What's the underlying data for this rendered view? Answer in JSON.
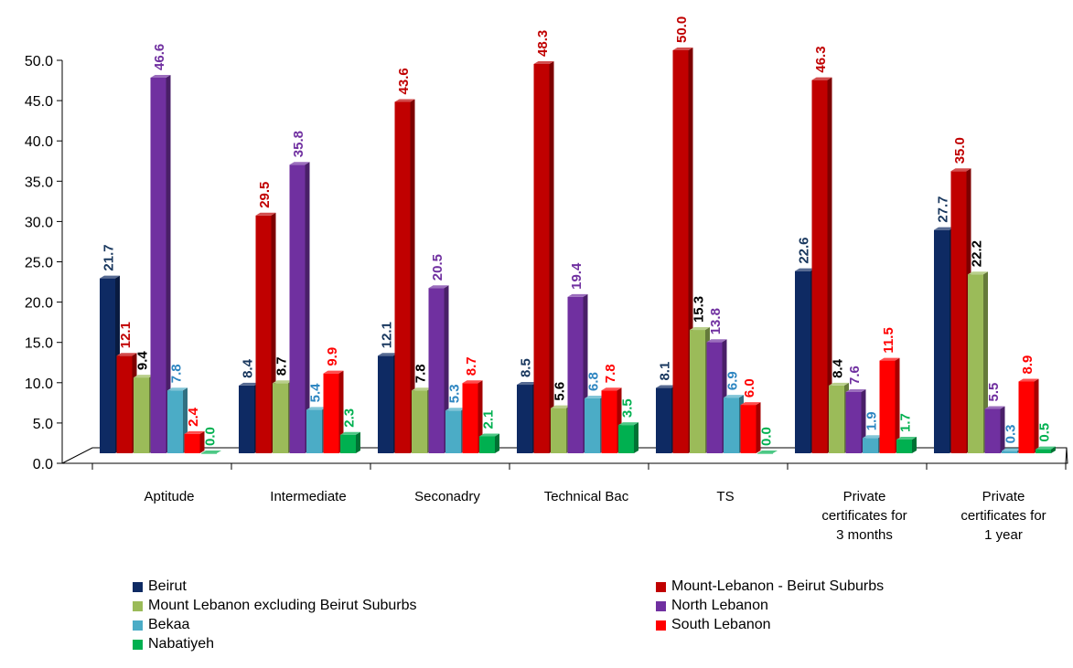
{
  "chart_data": {
    "type": "bar",
    "categories": [
      [
        "Aptitude"
      ],
      [
        "Intermediate"
      ],
      [
        "Seconadry"
      ],
      [
        "Technical Bac"
      ],
      [
        "TS"
      ],
      [
        "Private",
        "certificates for",
        "3 months"
      ],
      [
        "Private",
        "certificates for",
        "1 year"
      ]
    ],
    "ylim": [
      0,
      50
    ],
    "yticks": [
      "0.0",
      "5.0",
      "10.0",
      "15.0",
      "20.0",
      "25.0",
      "30.0",
      "35.0",
      "40.0",
      "45.0",
      "50.0"
    ],
    "legend_position": "bottom",
    "series": [
      {
        "name": "Beirut",
        "color": "#0e2a63",
        "label_color": "#17365d",
        "values": [
          21.7,
          8.4,
          12.1,
          8.5,
          8.1,
          22.6,
          27.7
        ],
        "labels": [
          "21.7",
          "8.4",
          "12.1",
          "8.5",
          "8.1",
          "22.6",
          "27.7"
        ]
      },
      {
        "name": "Mount-Lebanon - Beirut Suburbs",
        "color": "#c00000",
        "label_color": "#c00000",
        "values": [
          12.1,
          29.5,
          43.6,
          48.3,
          50.0,
          46.3,
          35.0
        ],
        "labels": [
          "12.1",
          "29.5",
          "43.6",
          "48.3",
          "50.0",
          "46.3",
          "35.0"
        ]
      },
      {
        "name": "Mount Lebanon excluding Beirut Suburbs",
        "color": "#9bbb59",
        "label_color": "#000000",
        "values": [
          9.4,
          8.7,
          7.8,
          5.6,
          15.3,
          8.4,
          22.2
        ],
        "labels": [
          "9.4",
          "8.7",
          "7.8",
          "5.6",
          "15.3",
          "8.4",
          "22.2"
        ]
      },
      {
        "name": "North Lebanon",
        "color": "#7030a0",
        "label_color": "#7030a0",
        "values": [
          46.6,
          35.8,
          20.5,
          19.4,
          13.8,
          7.6,
          5.5
        ],
        "labels": [
          "46.6",
          "35.8",
          "20.5",
          "19.4",
          "13.8",
          "7.6",
          "5.5"
        ]
      },
      {
        "name": "Bekaa",
        "color": "#4bacc6",
        "label_color": "#2e86c1",
        "values": [
          7.8,
          5.4,
          5.3,
          6.8,
          6.9,
          1.9,
          0.3
        ],
        "labels": [
          "7.8",
          "5.4",
          "5.3",
          "6.8",
          "6.9",
          "1.9",
          "0.3"
        ]
      },
      {
        "name": "South Lebanon",
        "color": "#ff0000",
        "label_color": "#ff0000",
        "values": [
          2.4,
          9.9,
          8.7,
          7.8,
          6.0,
          11.5,
          8.9
        ],
        "labels": [
          "2.4",
          "9.9",
          "8.7",
          "7.8",
          "6.0",
          "11.5",
          "8.9"
        ]
      },
      {
        "name": "Nabatiyeh",
        "color": "#00b050",
        "label_color": "#00b050",
        "values": [
          0.0,
          2.3,
          2.1,
          3.5,
          0.0,
          1.7,
          0.5
        ],
        "labels": [
          "0.0",
          "2.3",
          "2.1",
          "3.5",
          "0.0",
          "1.7",
          "0.5"
        ]
      }
    ]
  }
}
